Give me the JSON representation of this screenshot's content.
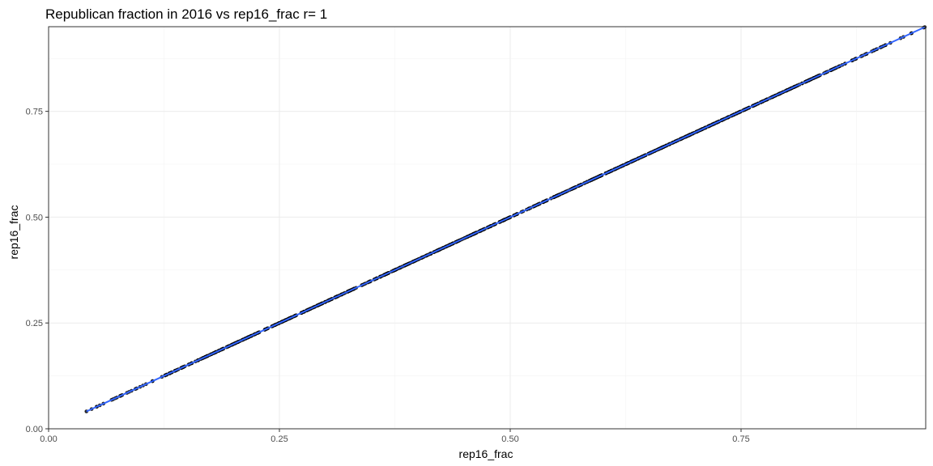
{
  "chart_data": {
    "type": "scatter",
    "title": "Republican fraction in 2016 vs rep16_frac  r= 1",
    "xlabel": "rep16_frac",
    "ylabel": "rep16_frac",
    "xlim": [
      0.0,
      0.95
    ],
    "ylim": [
      0.0,
      0.95
    ],
    "x_ticks": [
      0.0,
      0.25,
      0.5,
      0.75
    ],
    "x_tick_labels": [
      "0.00",
      "0.25",
      "0.50",
      "0.75"
    ],
    "y_ticks": [
      0.0,
      0.25,
      0.5,
      0.75
    ],
    "y_tick_labels": [
      "0.00",
      "0.25",
      "0.50",
      "0.75"
    ],
    "grid": true,
    "legend": "none",
    "point_color": "#000000",
    "fit_line_color": "#3366ff",
    "fit_line": {
      "x": [
        0.041,
        0.949
      ],
      "y": [
        0.041,
        0.949
      ]
    },
    "points_range": [
      0.041,
      0.949
    ]
  }
}
